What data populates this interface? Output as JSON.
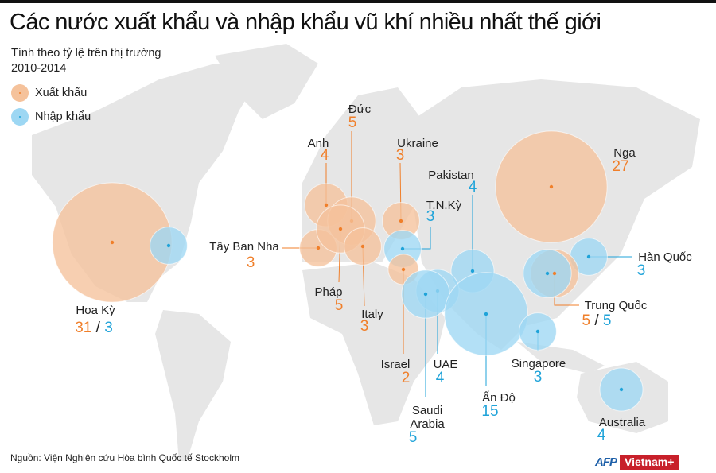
{
  "title": "Các nước xuất khẩu và nhập khẩu vũ khí nhiều nhất thế giới",
  "subtitle_line1": "Tính theo tỷ lệ trên thị trường",
  "subtitle_line2": "2010-2014",
  "legend": {
    "export": "Xuất khẩu",
    "import": "Nhập khẩu"
  },
  "colors": {
    "export_fill": "#f5c29b",
    "export_text": "#f07f2a",
    "import_fill": "#9dd7f3",
    "import_text": "#1fa3d9",
    "land": "#e6e6e6"
  },
  "source": "Nguồn: Viện Nghiên cứu Hòa bình Quốc tế Stockholm",
  "logos": {
    "afp": "AFP",
    "vietnam": "Vietnam+"
  },
  "countries": [
    {
      "name": "Hoa Kỳ",
      "export": 31,
      "import": 3
    },
    {
      "name": "Anh",
      "export": 4
    },
    {
      "name": "Đức",
      "export": 5
    },
    {
      "name": "Ukraine",
      "export": 3
    },
    {
      "name": "Tây Ban Nha",
      "export": 3
    },
    {
      "name": "Pháp",
      "export": 5
    },
    {
      "name": "Italy",
      "export": 3
    },
    {
      "name": "T.N.Kỳ",
      "import": 3
    },
    {
      "name": "Pakistan",
      "import": 4
    },
    {
      "name": "Nga",
      "export": 27
    },
    {
      "name": "Hàn Quốc",
      "import": 3
    },
    {
      "name": "Trung Quốc",
      "export": 5,
      "import": 5
    },
    {
      "name": "Israel",
      "export": 2
    },
    {
      "name": "UAE",
      "import": 4
    },
    {
      "name": "Saudi Arabia",
      "import": 5
    },
    {
      "name": "Ấn Độ",
      "import": 15
    },
    {
      "name": "Singapore",
      "import": 3
    },
    {
      "name": "Australia",
      "import": 4
    }
  ]
}
